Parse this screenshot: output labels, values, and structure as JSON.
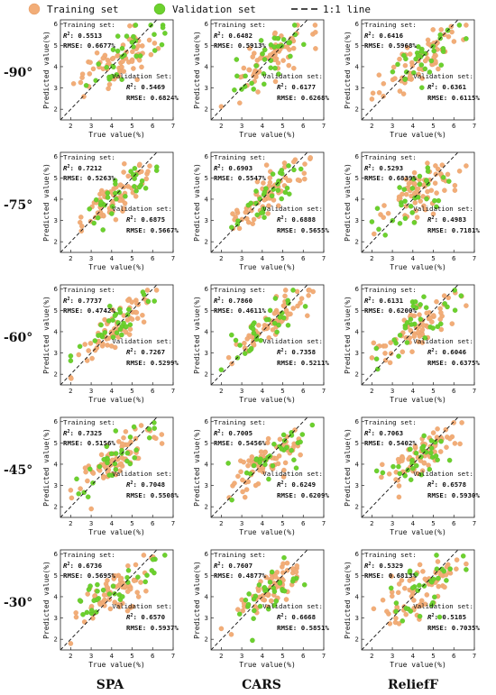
{
  "legend": {
    "training": {
      "label": "Training set",
      "color": "#f2ad78"
    },
    "validation": {
      "label": "Validation set",
      "color": "#6cd12e"
    },
    "line": {
      "label": "1:1 line"
    }
  },
  "row_labels": [
    "-90°",
    "-75°",
    "-60°",
    "-45°",
    "-30°"
  ],
  "col_labels": [
    "SPA",
    "CARS",
    "ReliefF"
  ],
  "stats_text": {
    "training_header": "Training set:",
    "validation_header": "Validation set:",
    "validation_header_alt": "Validation Set:",
    "r2_label": "R",
    "r2_sup": "2",
    "rmse_label": "RMSE: "
  },
  "chart_data": {
    "type": "scatter",
    "layout": "grid",
    "rows": 5,
    "cols": 3,
    "xlabel": "True value(%)",
    "ylabel": "Predicted value(%)",
    "xlim": [
      1.5,
      7
    ],
    "ylim": [
      1.5,
      6.2
    ],
    "x_ticks": [
      2,
      3,
      4,
      5,
      6,
      7
    ],
    "y_ticks": [
      2,
      3,
      4,
      5,
      6
    ],
    "reference_line": "1:1",
    "panels": [
      {
        "row": "-90°",
        "method": "SPA",
        "train": {
          "r2": "0.5513",
          "rmse": "0.6677%"
        },
        "validation": {
          "r2": "0.5469",
          "rmse": "0.6824%"
        },
        "val_header_variant": "alt"
      },
      {
        "row": "-90°",
        "method": "CARS",
        "train": {
          "r2": "0.6482",
          "rmse": "0.5913%"
        },
        "validation": {
          "r2": "0.6177",
          "rmse": "0.6268%"
        }
      },
      {
        "row": "-90°",
        "method": "ReliefF",
        "train": {
          "r2": "0.6416",
          "rmse": "0.5968%"
        },
        "validation": {
          "r2": "0.6361",
          "rmse": "0.6115%"
        }
      },
      {
        "row": "-75°",
        "method": "SPA",
        "train": {
          "r2": "0.7212",
          "rmse": "0.5263%"
        },
        "validation": {
          "r2": "0.6875",
          "rmse": "0.5667%"
        }
      },
      {
        "row": "-75°",
        "method": "CARS",
        "train": {
          "r2": "0.6903",
          "rmse": "0.5547%"
        },
        "validation": {
          "r2": "0.6888",
          "rmse": "0.5655%"
        }
      },
      {
        "row": "-75°",
        "method": "ReliefF",
        "train": {
          "r2": "0.5293",
          "rmse": "0.6839%"
        },
        "validation": {
          "r2": "0.4983",
          "rmse": "0.7181%"
        }
      },
      {
        "row": "-60°",
        "method": "SPA",
        "train": {
          "r2": "0.7737",
          "rmse": "0.4742%"
        },
        "validation": {
          "r2": "0.7267",
          "rmse": "0.5299%"
        }
      },
      {
        "row": "-60°",
        "method": "CARS",
        "train": {
          "r2": "0.7860",
          "rmse": "0.4611%"
        },
        "validation": {
          "r2": "0.7358",
          "rmse": "0.5211%"
        }
      },
      {
        "row": "-60°",
        "method": "ReliefF",
        "train": {
          "r2": "0.6131",
          "rmse": "0.6200%"
        },
        "validation": {
          "r2": "0.6046",
          "rmse": "0.6375%"
        }
      },
      {
        "row": "-45°",
        "method": "SPA",
        "train": {
          "r2": "0.7325",
          "rmse": "0.5156%"
        },
        "validation": {
          "r2": "0.7048",
          "rmse": "0.5508%"
        }
      },
      {
        "row": "-45°",
        "method": "CARS",
        "train": {
          "r2": "0.7005",
          "rmse": "0.5456%"
        },
        "validation": {
          "r2": "0.6249",
          "rmse": "0.6209%"
        }
      },
      {
        "row": "-45°",
        "method": "ReliefF",
        "train": {
          "r2": "0.7063",
          "rmse": "0.5402%"
        },
        "validation": {
          "r2": "0.6578",
          "rmse": "0.5930%"
        }
      },
      {
        "row": "-30°",
        "method": "SPA",
        "train": {
          "r2": "0.6736",
          "rmse": "0.5695%"
        },
        "validation": {
          "r2": "0.6570",
          "rmse": "0.5937%"
        }
      },
      {
        "row": "-30°",
        "method": "CARS",
        "train": {
          "r2": "0.7607",
          "rmse": "0.4877%"
        },
        "validation": {
          "r2": "0.6668",
          "rmse": "0.5851%"
        }
      },
      {
        "row": "-30°",
        "method": "ReliefF",
        "train": {
          "r2": "0.5329",
          "rmse": "0.6813%"
        },
        "validation": {
          "r2": "0.5185",
          "rmse": "0.7035%"
        }
      }
    ],
    "points_per_panel": {
      "train": 70,
      "validation": 32
    },
    "point_distribution": {
      "x_mean": 4.3,
      "x_sd": 0.95,
      "x_min": 2.0,
      "x_max": 6.6
    }
  }
}
